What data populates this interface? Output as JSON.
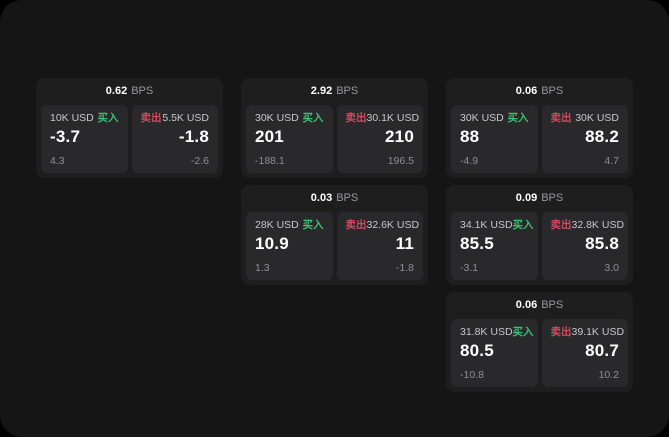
{
  "labels": {
    "bps_unit": "BPS",
    "buy": "买入",
    "sell": "卖出"
  },
  "colors": {
    "page_background": "#151515",
    "card_background": "#1e1e1f",
    "panel_background": "#29292b",
    "buy_green": "#42bd74",
    "sell_red": "#d04a60",
    "primary_text": "#ffffff",
    "secondary_text": "#c7c7cc",
    "muted_text": "#8e8e93"
  },
  "cards": [
    {
      "bps": "0.62",
      "buy": {
        "size": "10K USD",
        "value": "-3.7",
        "sub": "4.3"
      },
      "sell": {
        "size": "5.5K USD",
        "value": "-1.8",
        "sub": "-2.6"
      }
    },
    {
      "bps": "2.92",
      "buy": {
        "size": "30K USD",
        "value": "201",
        "sub": "-188.1"
      },
      "sell": {
        "size": "30.1K USD",
        "value": "210",
        "sub": "196.5"
      }
    },
    {
      "bps": "0.06",
      "buy": {
        "size": "30K USD",
        "value": "88",
        "sub": "-4.9"
      },
      "sell": {
        "size": "30K USD",
        "value": "88.2",
        "sub": "4.7"
      }
    },
    {
      "bps": "0.03",
      "buy": {
        "size": "28K USD",
        "value": "10.9",
        "sub": "1.3"
      },
      "sell": {
        "size": "32.6K USD",
        "value": "11",
        "sub": "-1.8"
      }
    },
    {
      "bps": "0.09",
      "buy": {
        "size": "34.1K USD",
        "value": "85.5",
        "sub": "-3.1"
      },
      "sell": {
        "size": "32.8K USD",
        "value": "85.8",
        "sub": "3.0"
      }
    },
    {
      "bps": "0.06",
      "buy": {
        "size": "31.8K USD",
        "value": "80.5",
        "sub": "-10.8"
      },
      "sell": {
        "size": "39.1K USD",
        "value": "80.7",
        "sub": "10.2"
      }
    }
  ]
}
